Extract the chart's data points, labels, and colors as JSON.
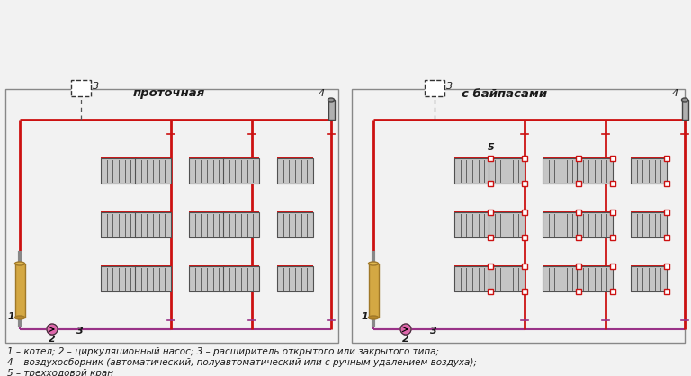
{
  "bg_color": "#f2f2f2",
  "red": "#cc1111",
  "purple": "#993388",
  "gold_light": "#d4a843",
  "gold_dark": "#a07828",
  "dark": "#1a1a1a",
  "gray_pipe": "#888888",
  "rad_face": "#c8c8c8",
  "rad_edge": "#555555",
  "title_left": "проточная",
  "title_right": "с байпасами",
  "caption_line1": "1 – котел; 2 – циркуляционный насос; 3 – расширитель открытого или закрытого типа;",
  "caption_line2": "4 – воздухосборник (автоматический, полуавтоматический или с ручным удалением воздуха);",
  "caption_line3": "5 – трехходовой кран"
}
